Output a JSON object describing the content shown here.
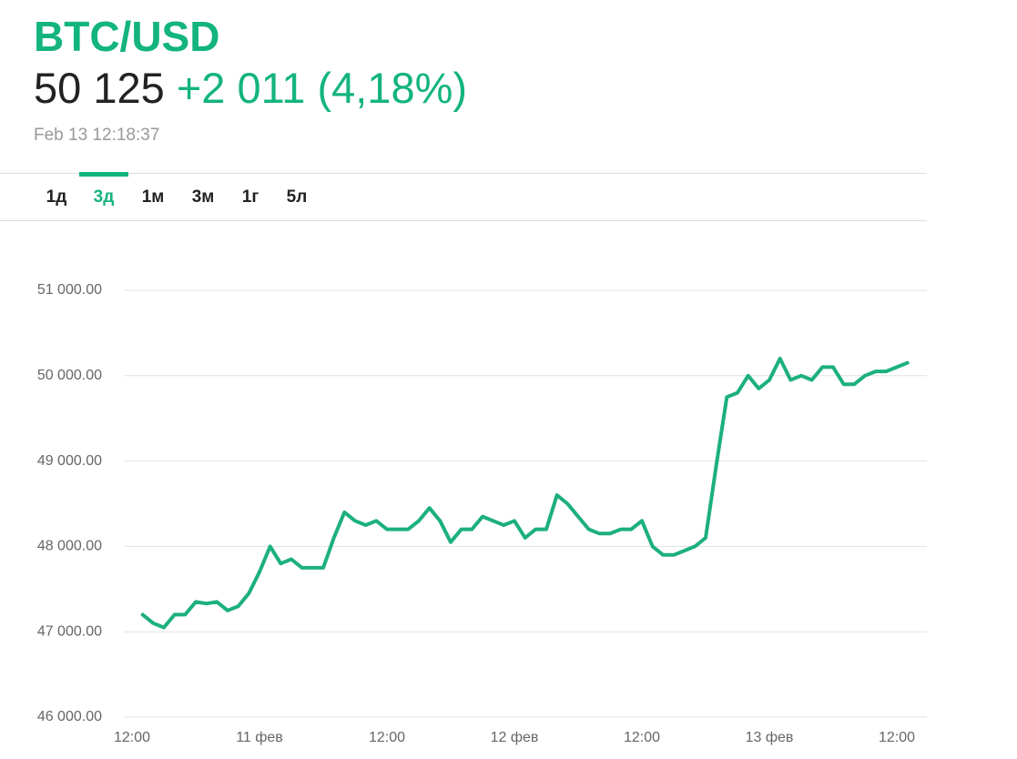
{
  "header": {
    "title": "BTC/USD",
    "price": "50 125",
    "change": "+2 011 (4,18%)",
    "time": "Feb 13 12:18:37"
  },
  "tabs": {
    "items": [
      "1д",
      "3д",
      "1м",
      "3м",
      "1г",
      "5л"
    ],
    "active": 1
  },
  "chart_data": {
    "type": "line",
    "categories": [
      "12:00",
      null,
      null,
      null,
      null,
      null,
      null,
      null,
      null,
      null,
      null,
      null,
      "11 фев",
      null,
      null,
      null,
      null,
      null,
      null,
      null,
      null,
      null,
      null,
      null,
      "12:00",
      null,
      null,
      null,
      null,
      null,
      null,
      null,
      null,
      null,
      null,
      null,
      "12 фев",
      null,
      null,
      null,
      null,
      null,
      null,
      null,
      null,
      null,
      null,
      null,
      "12:00",
      null,
      null,
      null,
      null,
      null,
      null,
      null,
      null,
      null,
      null,
      null,
      "13 фев",
      null,
      null,
      null,
      null,
      null,
      null,
      null,
      null,
      null,
      null,
      null,
      "12:00",
      null
    ],
    "series": [
      {
        "name": "BTC/USD",
        "color": "#1cb07c",
        "values": [
          null,
          47200,
          47100,
          47050,
          47200,
          47200,
          47350,
          47330,
          47350,
          47250,
          47300,
          47450,
          47700,
          48000,
          47800,
          47850,
          47750,
          47750,
          47750,
          48100,
          48400,
          48300,
          48250,
          48300,
          48200,
          48200,
          48200,
          48300,
          48450,
          48300,
          48050,
          48200,
          48200,
          48350,
          48300,
          48250,
          48300,
          48100,
          48200,
          48200,
          48600,
          48500,
          48350,
          48200,
          48150,
          48150,
          48200,
          48200,
          48300,
          48000,
          47900,
          47900,
          47950,
          48000,
          48100,
          48950,
          49750,
          49800,
          50000,
          49850,
          49950,
          50200,
          49950,
          50000,
          49950,
          50100,
          50100,
          49900,
          49900,
          50000,
          50050,
          50050,
          50100,
          50150
        ]
      }
    ],
    "ylim": [
      46000,
      51000
    ],
    "yticks": [
      {
        "value": 46000,
        "label": "46 000.00"
      },
      {
        "value": 47000,
        "label": "47 000.00"
      },
      {
        "value": 48000,
        "label": "48 000.00"
      },
      {
        "value": 49000,
        "label": "49 000.00"
      },
      {
        "value": 50000,
        "label": "50 000.00"
      },
      {
        "value": 51000,
        "label": "51 000.00"
      }
    ],
    "grid": true
  }
}
